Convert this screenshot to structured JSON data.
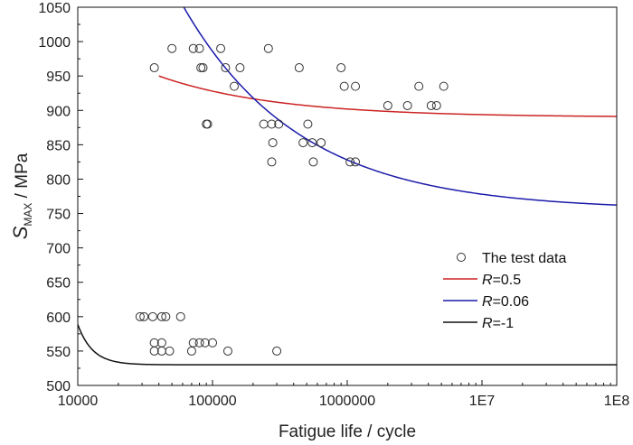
{
  "chart_data": {
    "type": "scatter",
    "title": "",
    "xlabel": "Fatigue life / cycle",
    "ylabel_main": "S",
    "ylabel_sub": "MAX",
    "ylabel_unit": " / MPa",
    "x_scale": "log",
    "xlim": [
      10000,
      100000000
    ],
    "ylim": [
      500,
      1050
    ],
    "x_ticks": [
      10000,
      100000,
      1000000,
      10000000,
      100000000
    ],
    "x_tick_labels": [
      "10000",
      "100000",
      "1000000",
      "1E7",
      "1E8"
    ],
    "y_ticks": [
      500,
      550,
      600,
      650,
      700,
      750,
      800,
      850,
      900,
      950,
      1000,
      1050
    ],
    "y_tick_labels": [
      "500",
      "550",
      "600",
      "650",
      "700",
      "750",
      "800",
      "850",
      "900",
      "950",
      "1000",
      "1050"
    ],
    "grid": false,
    "legend_position": "bottom-right",
    "legend": [
      {
        "label": "The test data",
        "prefix": "",
        "rest": "The test data",
        "marker": "circle",
        "color": "#333333"
      },
      {
        "label": "R=0.5",
        "prefix": "R",
        "rest": "=0.5",
        "marker": "line",
        "color": "#cc2222"
      },
      {
        "label": "R=0.06",
        "prefix": "R",
        "rest": "=0.06",
        "marker": "line",
        "color": "#1a1aaa"
      },
      {
        "label": "R=-1",
        "prefix": "R",
        "rest": "=-1",
        "marker": "line",
        "color": "#111111"
      }
    ],
    "series": [
      {
        "name": "The test data",
        "kind": "scatter",
        "color": "#333333",
        "points": [
          [
            37000,
            962
          ],
          [
            50000,
            990
          ],
          [
            72000,
            990
          ],
          [
            80000,
            990
          ],
          [
            82000,
            962
          ],
          [
            85000,
            962
          ],
          [
            90000,
            880
          ],
          [
            92000,
            880
          ],
          [
            115000,
            990
          ],
          [
            125000,
            962
          ],
          [
            145000,
            935
          ],
          [
            160000,
            962
          ],
          [
            260000,
            990
          ],
          [
            440000,
            962
          ],
          [
            900000,
            962
          ],
          [
            950000,
            935
          ],
          [
            1150000,
            935
          ],
          [
            3400000,
            935
          ],
          [
            5200000,
            935
          ],
          [
            2000000,
            907
          ],
          [
            2800000,
            907
          ],
          [
            4200000,
            907
          ],
          [
            4600000,
            907
          ],
          [
            240000,
            880
          ],
          [
            275000,
            880
          ],
          [
            310000,
            880
          ],
          [
            510000,
            880
          ],
          [
            280000,
            853
          ],
          [
            470000,
            853
          ],
          [
            550000,
            853
          ],
          [
            640000,
            853
          ],
          [
            275000,
            825
          ],
          [
            560000,
            825
          ],
          [
            1050000,
            825
          ],
          [
            1150000,
            825
          ],
          [
            29000,
            600
          ],
          [
            31000,
            600
          ],
          [
            36000,
            600
          ],
          [
            42000,
            600
          ],
          [
            45000,
            600
          ],
          [
            58000,
            600
          ],
          [
            37000,
            562
          ],
          [
            42000,
            562
          ],
          [
            72000,
            562
          ],
          [
            80000,
            562
          ],
          [
            88000,
            562
          ],
          [
            100000,
            562
          ],
          [
            37000,
            550
          ],
          [
            42000,
            550
          ],
          [
            48000,
            550
          ],
          [
            70000,
            550
          ],
          [
            130000,
            550
          ],
          [
            300000,
            550
          ]
        ]
      },
      {
        "name": "R=0.5",
        "kind": "curve",
        "color": "#cc2222",
        "a": 890,
        "b": 12000,
        "c": 0.5,
        "x_start": 40000,
        "x_end": 100000000
      },
      {
        "name": "R=0.06",
        "kind": "curve",
        "color": "#1a1aaa",
        "a": 755,
        "b": 73000,
        "c": 0.5,
        "x_start": 26000,
        "x_end": 100000000
      },
      {
        "name": "R=-1",
        "kind": "curve",
        "color": "#111111",
        "a": 530,
        "b": 3.7e+17,
        "c": 3.95,
        "x_start": 10000,
        "x_end": 100000000
      }
    ]
  }
}
